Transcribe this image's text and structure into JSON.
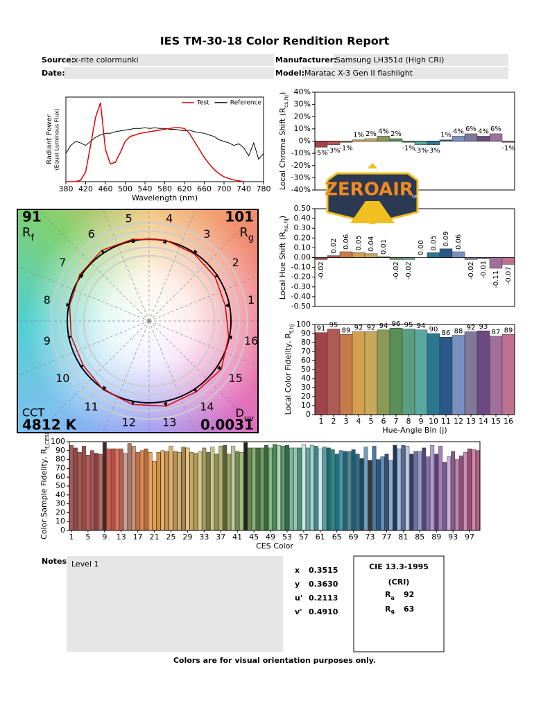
{
  "title": "IES TM-30-18 Color Rendition Report",
  "header": {
    "source_label": "Source:",
    "source": "x-rite colormunki",
    "manufacturer_label": "Manufacturer:",
    "manufacturer": "Samsung LH351d (High CRI)",
    "date_label": "Date:",
    "model_label": "Model:",
    "model": "Maratac X-3 Gen II flashlight"
  },
  "chart_data": [
    {
      "type": "line",
      "xlabel": "Wavelength (nm)",
      "ylabel": [
        "Radiant Power",
        "(Equal Luminous Flux)"
      ],
      "x": [
        380,
        390,
        400,
        410,
        420,
        430,
        440,
        450,
        460,
        470,
        480,
        490,
        500,
        510,
        520,
        530,
        540,
        550,
        560,
        570,
        580,
        590,
        600,
        610,
        620,
        630,
        640,
        650,
        660,
        670,
        680,
        690,
        700,
        710,
        720,
        730,
        740,
        750,
        760,
        770,
        780
      ],
      "series": [
        {
          "name": "Test",
          "color": "#e00000",
          "values": [
            0,
            0,
            0,
            0.02,
            0.12,
            0.45,
            0.8,
            0.98,
            0.4,
            0.22,
            0.24,
            0.36,
            0.5,
            0.56,
            0.58,
            0.6,
            0.61,
            0.62,
            0.63,
            0.64,
            0.65,
            0.66,
            0.67,
            0.67,
            0.66,
            0.6,
            0.5,
            0.4,
            0.3,
            0.22,
            0.15,
            0.1,
            0.06,
            0.04,
            0.02,
            0.01,
            0,
            null,
            null,
            null,
            null
          ]
        },
        {
          "name": "Reference",
          "color": "#000000",
          "values": [
            0.35,
            0.45,
            0.5,
            0.48,
            0.45,
            0.5,
            0.55,
            0.58,
            0.6,
            0.6,
            0.62,
            0.63,
            0.64,
            0.65,
            0.66,
            0.66,
            0.67,
            0.66,
            0.67,
            0.66,
            0.66,
            0.65,
            0.65,
            0.64,
            0.63,
            0.64,
            0.62,
            0.61,
            0.6,
            0.58,
            0.56,
            0.52,
            0.5,
            0.48,
            0.45,
            0.47,
            0.42,
            0.32,
            0.48,
            0.28,
            0.35
          ]
        }
      ],
      "xlim": [
        380,
        780
      ],
      "xticks": [
        380,
        420,
        460,
        500,
        540,
        580,
        620,
        660,
        700,
        740,
        780
      ],
      "ylim": [
        0,
        1.05
      ],
      "legend": "upper right"
    },
    {
      "type": "vector",
      "categories": [
        1,
        2,
        3,
        4,
        5,
        6,
        7,
        8,
        9,
        10,
        11,
        12,
        13,
        14,
        15,
        16
      ],
      "reference_radius": 1,
      "test_radius": [
        0.95,
        0.97,
        0.99,
        1.01,
        1.02,
        1.04,
        1.02,
        0.99,
        0.97,
        0.97,
        1.01,
        1.04,
        1.06,
        1.04,
        1.06,
        0.99
      ],
      "rticks": [
        0.8,
        0.9,
        1.1,
        1.2
      ],
      "test_color": "#e00000",
      "reference_color": "#000000",
      "rf_value": 91,
      "rf_label": {
        "text": "R",
        "sub": "f"
      },
      "rg_value": 101,
      "rg_label": {
        "text": "R",
        "sub": "g"
      },
      "cct_label": "CCT",
      "cct": "4812 K",
      "duv_label": {
        "text": "D",
        "sub": "uv"
      },
      "duv": 0.0031
    },
    {
      "type": "bar",
      "ylabel": {
        "text": "Local Chroma Shift (R",
        "sub": "cs,hj",
        "end": ")"
      },
      "values": [
        -5,
        -3,
        -1,
        1,
        2,
        4,
        2,
        -1,
        -3,
        -3,
        1,
        4,
        6,
        4,
        6,
        -1
      ],
      "value_labels": [
        "-5%",
        "-3%",
        "-1%",
        "1%",
        "2%",
        "4%",
        "2%",
        "-1%",
        "-3%",
        "-3%",
        "1%",
        "4%",
        "6%",
        "4%",
        "6%",
        "-1%"
      ],
      "colors": [
        "#a0444a",
        "#b05a55",
        "#c97a4a",
        "#d4a050",
        "#c8a85a",
        "#8a9858",
        "#5a9058",
        "#5aa080",
        "#5aa8a0",
        "#2a7890",
        "#2a5888",
        "#7a90c0",
        "#807898",
        "#6a4a80",
        "#a0709a",
        "#c07090"
      ],
      "ylim": [
        -40,
        40
      ],
      "yticks": [
        {
          "value": 40,
          "label": "40%"
        },
        {
          "value": 30,
          "label": "30%"
        },
        {
          "value": 20,
          "label": "20%"
        },
        {
          "value": 10,
          "label": "10%"
        },
        {
          "value": 0,
          "label": "0%"
        },
        {
          "value": -10,
          "label": "-10%"
        },
        {
          "value": -20,
          "label": "-20%"
        },
        {
          "value": -30,
          "label": "-30%"
        },
        {
          "value": -40,
          "label": "-40%"
        }
      ]
    },
    {
      "type": "bar",
      "ylabel": {
        "text": "Local Hue Shift (R",
        "sub": "hs,hj",
        "end": ")"
      },
      "values": [
        -0.02,
        0.02,
        0.06,
        0.05,
        0.04,
        0.01,
        -0.02,
        -0.02,
        0,
        0.05,
        0.09,
        0.06,
        -0.02,
        -0.01,
        -0.11,
        -0.07
      ],
      "value_labels": [
        "-0.02",
        "0.02",
        "0.06",
        "0.05",
        "0.04",
        "0.01",
        "-0.02",
        "-0.02",
        "0.00",
        "0.05",
        "0.09",
        "0.06",
        "-0.02",
        "-0.01",
        "-0.11",
        "-0.07"
      ],
      "colors": [
        "#a0444a",
        "#b05a55",
        "#c97a4a",
        "#d4a050",
        "#c8a85a",
        "#8a9858",
        "#5a9058",
        "#5aa080",
        "#5aa8a0",
        "#2a7890",
        "#2a5888",
        "#7a90c0",
        "#807898",
        "#6a4a80",
        "#a0709a",
        "#c07090"
      ],
      "ylim": [
        -0.5,
        0.5
      ],
      "yticks": [
        {
          "value": 0.5,
          "label": "0.50"
        },
        {
          "value": 0.4,
          "label": "0.40"
        },
        {
          "value": 0.3,
          "label": "0.30"
        },
        {
          "value": 0.2,
          "label": "0.20"
        },
        {
          "value": 0.1,
          "label": "0.10"
        },
        {
          "value": 0,
          "label": "0.00"
        },
        {
          "value": -0.1,
          "label": "-0.10"
        },
        {
          "value": -0.2,
          "label": "-0.20"
        },
        {
          "value": -0.3,
          "label": "-0.30"
        },
        {
          "value": -0.4,
          "label": "-0.40"
        },
        {
          "value": -0.5,
          "label": "-0.50"
        }
      ]
    },
    {
      "type": "bar",
      "ylabel": {
        "text": "Local Color Fidelity, R",
        "sub": "f,hj"
      },
      "xlabel": "Hue-Angle Bin (j)",
      "categories": [
        1,
        2,
        3,
        4,
        5,
        6,
        7,
        8,
        9,
        10,
        11,
        12,
        13,
        14,
        15,
        16
      ],
      "values": [
        91,
        95,
        89,
        92,
        92,
        94,
        96,
        95,
        94,
        90,
        86,
        88,
        92,
        93,
        87,
        89
      ],
      "colors": [
        "#a0444a",
        "#b05a55",
        "#c97a4a",
        "#d4a050",
        "#c8a85a",
        "#8a9858",
        "#5a9058",
        "#5aa080",
        "#5aa8a0",
        "#2a7890",
        "#2a5888",
        "#7a90c0",
        "#807898",
        "#6a4a80",
        "#a0709a",
        "#c07090"
      ],
      "ylim": [
        0,
        100
      ],
      "yticks": [
        0,
        10,
        20,
        30,
        40,
        50,
        60,
        70,
        80,
        90,
        100
      ]
    },
    {
      "type": "bar",
      "ylabel": {
        "text": "Color Sample Fidelity, R",
        "sub": "f,CESi"
      },
      "xlabel": "CES Color",
      "categories": [
        1,
        null,
        null,
        null,
        5,
        null,
        null,
        null,
        9,
        null,
        null,
        null,
        13,
        null,
        null,
        null,
        17,
        null,
        null,
        null,
        21,
        null,
        null,
        null,
        25,
        null,
        null,
        null,
        29,
        null,
        null,
        null,
        33,
        null,
        null,
        null,
        37,
        null,
        null,
        null,
        41,
        null,
        null,
        null,
        45,
        null,
        null,
        null,
        49,
        null,
        null,
        null,
        53,
        null,
        null,
        null,
        57,
        null,
        null,
        null,
        61,
        null,
        null,
        null,
        65,
        null,
        null,
        null,
        69,
        null,
        null,
        null,
        73,
        null,
        null,
        null,
        77,
        null,
        null,
        null,
        81,
        null,
        null,
        null,
        85,
        null,
        null,
        null,
        89,
        null,
        null,
        null,
        93,
        null,
        null,
        null,
        97,
        null,
        null
      ],
      "values": [
        96,
        93,
        88,
        95,
        85,
        90,
        87,
        86,
        99,
        92,
        92,
        92,
        92,
        87,
        98,
        95,
        88,
        90,
        92,
        88,
        78,
        88,
        90,
        89,
        95,
        89,
        88,
        94,
        93,
        88,
        87,
        89,
        93,
        88,
        94,
        86,
        95,
        96,
        86,
        95,
        89,
        88,
        99,
        93,
        93,
        93,
        93,
        96,
        93,
        97,
        96,
        95,
        96,
        93,
        93,
        93,
        97,
        93,
        96,
        95,
        92,
        94,
        93,
        91,
        86,
        90,
        89,
        89,
        91,
        86,
        81,
        94,
        79,
        95,
        80,
        83,
        86,
        79,
        96,
        92,
        96,
        95,
        86,
        89,
        89,
        93,
        83,
        96,
        86,
        95,
        77,
        83,
        89,
        80,
        84,
        88,
        92,
        91,
        90
      ],
      "colors": [
        "#a85a5a",
        "#8e4a4a",
        "#b25555",
        "#9e4e46",
        "#c0605a",
        "#a65450",
        "#8a3e3e",
        "#b8675e",
        "#4a2626",
        "#d85a48",
        "#c44a3c",
        "#e0705a",
        "#b85a48",
        "#c8a090",
        "#a87a6a",
        "#d89070",
        "#c87040",
        "#e08850",
        "#b86a3a",
        "#f0a060",
        "#e8a050",
        "#d89040",
        "#f0b060",
        "#c89048",
        "#e0b070",
        "#b89058",
        "#d8b068",
        "#a88850",
        "#e8c880",
        "#c8a860",
        "#b09850",
        "#d8c890",
        "#a8a060",
        "#7a7a40",
        "#c8c880",
        "#909050",
        "#b0b070",
        "#586030",
        "#98a060",
        "#c0c8a0",
        "#70904a",
        "#a0c080",
        "#202818",
        "#608a50",
        "#88b070",
        "#4a7040",
        "#68a060",
        "#3a6a38",
        "#80b888",
        "#4a8858",
        "#a8d8b0",
        "#5a9a70",
        "#2e6a48",
        "#78b898",
        "#90c8b0",
        "#4a9078",
        "#c8e8e0",
        "#68a8a0",
        "#a0d0d0",
        "#3a8888",
        "#d0e8e8",
        "#5aa0a8",
        "#1a6a70",
        "#2a8890",
        "#1a7080",
        "#3a98a8",
        "#28606e",
        "#4a8898",
        "#186078",
        "#306e88",
        "#1a4a60",
        "#70a0c0",
        "#3a3a3a",
        "#4a78a0",
        "#2a5888",
        "#6090c0",
        "#385078",
        "#8aa8d0",
        "#203858",
        "#a0b8e0",
        "#5a6a98",
        "#c0c8e8",
        "#383a68",
        "#7070a8",
        "#9898c8",
        "#504878",
        "#8070b0",
        "#b0a0d0",
        "#603a80",
        "#a080b8",
        "#7a5890",
        "#c8b0d8",
        "#8a5a88",
        "#b888b0",
        "#9a4a80",
        "#c890b0",
        "#a04a78",
        "#d088a8",
        "#b06088"
      ],
      "ylim": [
        0,
        100
      ],
      "yticks": [
        0,
        10,
        20,
        30,
        40,
        50,
        60,
        70,
        80,
        90,
        100
      ]
    }
  ],
  "notes": {
    "label": "Notes:",
    "text": "Level 1"
  },
  "chromaticity": [
    {
      "label": "x",
      "value": "0.3515"
    },
    {
      "label": "y",
      "value": "0.3630"
    },
    {
      "label": "u'",
      "value": "0.2113"
    },
    {
      "label": "v'",
      "value": "0.4910"
    }
  ],
  "cri": {
    "title": "CIE 13.3-1995",
    "subtitle": "(CRI)",
    "ra_label": {
      "text": "R",
      "sub": "a"
    },
    "ra": 92,
    "r9_label": {
      "text": "R",
      "sub": "9"
    },
    "r9": 63
  },
  "footer": "Colors are for visual orientation purposes only.",
  "watermark": {
    "text": "ZEROAIR",
    "sub": "ORG"
  }
}
